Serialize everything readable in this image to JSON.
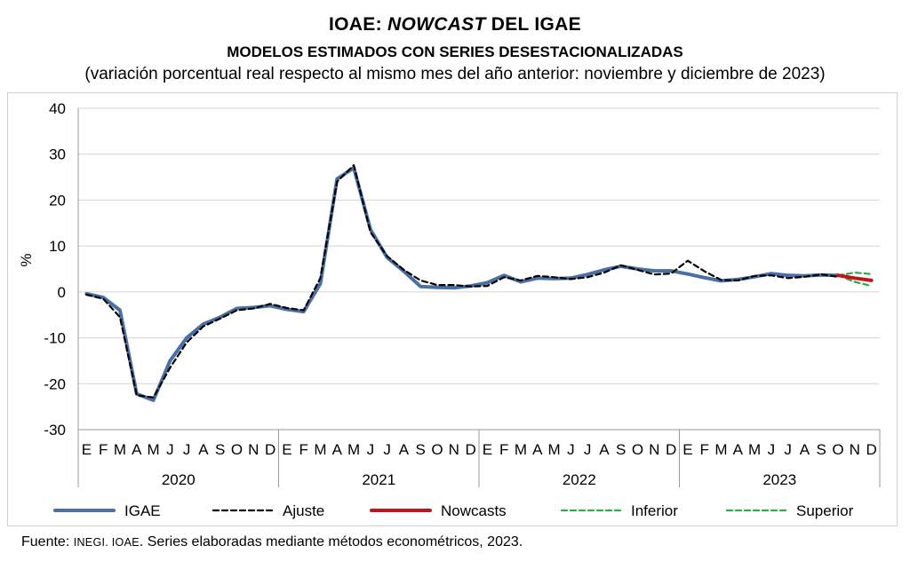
{
  "header": {
    "title_prefix": "IOAE: ",
    "title_italic": "NOWCAST",
    "title_suffix": " DEL IGAE",
    "subtitle": "MODELOS ESTIMADOS CON SERIES DESESTACIONALIZADAS",
    "note": "(variación porcentual real respecto al mismo mes del año anterior: noviembre y diciembre de 2023)"
  },
  "footer": {
    "label": "Fuente: ",
    "org": "INEGI. IOAE",
    "rest": ". Series elaboradas mediante métodos econométricos, 2023."
  },
  "colors": {
    "igae": "#4a6fa5",
    "ajuste": "#000000",
    "nowcast": "#c0161b",
    "bounds": "#2eaa4a",
    "grid": "#d4d4d4"
  },
  "chart_data": {
    "type": "line",
    "ylabel": "%",
    "ylim": [
      -30,
      40
    ],
    "yticks": [
      -30,
      -20,
      -10,
      0,
      10,
      20,
      30,
      40
    ],
    "grid": true,
    "legend_position": "bottom",
    "month_labels": [
      "E",
      "F",
      "M",
      "A",
      "M",
      "J",
      "J",
      "A",
      "S",
      "O",
      "N",
      "D"
    ],
    "years": [
      "2020",
      "2021",
      "2022",
      "2023"
    ],
    "series": [
      {
        "name": "IGAE",
        "values": [
          -0.4,
          -1.2,
          -4.0,
          -22.2,
          -23.6,
          -15.0,
          -10.0,
          -7.0,
          -5.5,
          -3.6,
          -3.4,
          -3.0,
          -3.8,
          -4.3,
          1.8,
          24.6,
          27.0,
          13.6,
          7.5,
          4.5,
          1.2,
          1.0,
          0.9,
          1.3,
          2.0,
          3.6,
          2.2,
          3.0,
          2.9,
          3.0,
          3.8,
          4.8,
          5.6,
          5.0,
          4.6,
          4.6,
          3.9,
          3.1,
          2.4,
          2.7,
          3.3,
          4.0,
          3.6,
          3.5,
          3.7,
          3.6,
          null,
          null
        ]
      },
      {
        "name": "Ajuste",
        "values": [
          -0.6,
          -1.5,
          -5.5,
          -22.5,
          -23.0,
          -16.5,
          -11.0,
          -7.5,
          -5.8,
          -4.0,
          -3.6,
          -2.6,
          -3.5,
          -4.0,
          3.0,
          24.0,
          27.6,
          13.0,
          7.8,
          4.8,
          2.5,
          1.5,
          1.5,
          1.2,
          1.3,
          3.2,
          2.5,
          3.5,
          3.2,
          2.8,
          3.2,
          4.2,
          5.8,
          4.8,
          3.8,
          4.0,
          6.8,
          4.5,
          2.6,
          2.5,
          3.5,
          3.6,
          3.0,
          3.3,
          3.8,
          3.3,
          null,
          null
        ]
      },
      {
        "name": "Nowcasts",
        "values": [
          null,
          null,
          null,
          null,
          null,
          null,
          null,
          null,
          null,
          null,
          null,
          null,
          null,
          null,
          null,
          null,
          null,
          null,
          null,
          null,
          null,
          null,
          null,
          null,
          null,
          null,
          null,
          null,
          null,
          null,
          null,
          null,
          null,
          null,
          null,
          null,
          null,
          null,
          null,
          null,
          null,
          null,
          null,
          null,
          null,
          3.6,
          3.0,
          2.5
        ]
      },
      {
        "name": "Inferior",
        "values": [
          null,
          null,
          null,
          null,
          null,
          null,
          null,
          null,
          null,
          null,
          null,
          null,
          null,
          null,
          null,
          null,
          null,
          null,
          null,
          null,
          null,
          null,
          null,
          null,
          null,
          null,
          null,
          null,
          null,
          null,
          null,
          null,
          null,
          null,
          null,
          null,
          null,
          null,
          null,
          null,
          null,
          null,
          null,
          null,
          null,
          3.6,
          2.2,
          1.3
        ]
      },
      {
        "name": "Superior",
        "values": [
          null,
          null,
          null,
          null,
          null,
          null,
          null,
          null,
          null,
          null,
          null,
          null,
          null,
          null,
          null,
          null,
          null,
          null,
          null,
          null,
          null,
          null,
          null,
          null,
          null,
          null,
          null,
          null,
          null,
          null,
          null,
          null,
          null,
          null,
          null,
          null,
          null,
          null,
          null,
          null,
          null,
          null,
          null,
          null,
          null,
          3.6,
          4.2,
          3.9
        ]
      }
    ]
  }
}
